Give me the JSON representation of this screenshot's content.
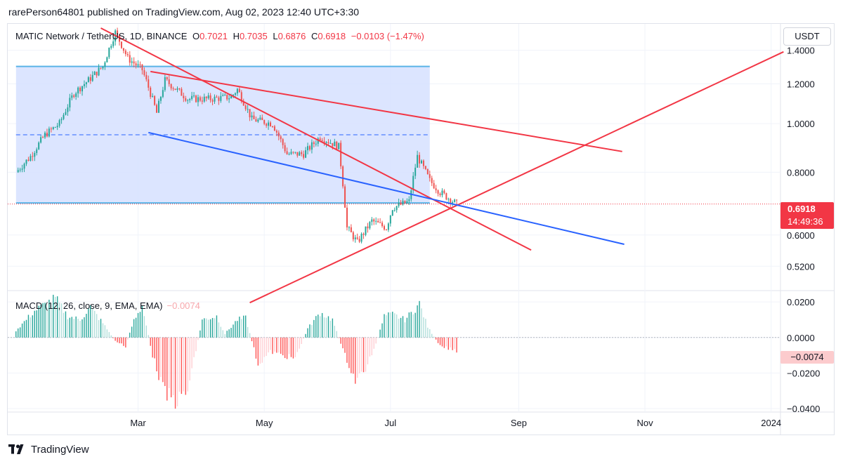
{
  "header": {
    "publisher": "rarePerson64801 published on TradingView.com, Aug 02, 2023 12:40 UTC+3:30"
  },
  "legend": {
    "symbol": "MATIC Network / TetherUS, 1D, BINANCE",
    "open_label": "O",
    "open": "0.7021",
    "high_label": "H",
    "high": "0.7035",
    "low_label": "L",
    "low": "0.6876",
    "close_label": "C",
    "close": "0.6918",
    "change": "−0.0103 (−1.47%)"
  },
  "currency_button": "USDT",
  "price_tag": {
    "price": "0.6918",
    "countdown": "14:49:36"
  },
  "macd": {
    "legend": "MACD (12, 26, close, 9, EMA, EMA)",
    "value": "−0.0074",
    "tag": "−0.0074"
  },
  "footer": {
    "brand": "TradingView"
  },
  "colors": {
    "up": "#26a69a",
    "down": "#ef5350",
    "trendline_red": "#f23645",
    "trendline_blue": "#2962ff",
    "range_fill": "#d6e0ff",
    "range_border": "#5ab4e6",
    "hist_pos_strong": "#26a69a",
    "hist_pos_weak": "#b2dfdb",
    "hist_neg_strong": "#ff5252",
    "hist_neg_weak": "#ffcdd2"
  },
  "chart_data": [
    {
      "type": "candlestick",
      "title": "MATIC Network / TetherUS, 1D, BINANCE",
      "x_ticks": [
        "Mar",
        "May",
        "Jul",
        "Sep",
        "Nov",
        "2024"
      ],
      "y_ticks": [
        "1.4000",
        "1.2000",
        "1.0000",
        "0.8000",
        "0.6000",
        "0.5200"
      ],
      "y_tick_values": [
        1.4,
        1.2,
        1.0,
        0.8,
        0.6,
        0.52
      ],
      "y_scale": "log",
      "ylim": [
        0.465,
        1.58
      ],
      "last_price": 0.6918,
      "close_path": [
        [
          "2023-01-01",
          0.8
        ],
        [
          "2023-01-08",
          0.86
        ],
        [
          "2023-01-15",
          0.95
        ],
        [
          "2023-01-22",
          1.0
        ],
        [
          "2023-01-29",
          1.15
        ],
        [
          "2023-02-05",
          1.22
        ],
        [
          "2023-02-12",
          1.3
        ],
        [
          "2023-02-18",
          1.52
        ],
        [
          "2023-02-24",
          1.35
        ],
        [
          "2023-03-03",
          1.28
        ],
        [
          "2023-03-10",
          1.05
        ],
        [
          "2023-03-14",
          1.22
        ],
        [
          "2023-03-25",
          1.12
        ],
        [
          "2023-04-05",
          1.12
        ],
        [
          "2023-04-15",
          1.13
        ],
        [
          "2023-04-18",
          1.17
        ],
        [
          "2023-04-25",
          1.02
        ],
        [
          "2023-05-05",
          1.0
        ],
        [
          "2023-05-12",
          0.87
        ],
        [
          "2023-05-20",
          0.87
        ],
        [
          "2023-05-28",
          0.94
        ],
        [
          "2023-06-06",
          0.9
        ],
        [
          "2023-06-10",
          0.62
        ],
        [
          "2023-06-15",
          0.58
        ],
        [
          "2023-06-22",
          0.64
        ],
        [
          "2023-06-29",
          0.62
        ],
        [
          "2023-07-02",
          0.68
        ],
        [
          "2023-07-10",
          0.7
        ],
        [
          "2023-07-14",
          0.86
        ],
        [
          "2023-07-20",
          0.77
        ],
        [
          "2023-07-25",
          0.73
        ],
        [
          "2023-08-02",
          0.6918
        ]
      ],
      "overlays": {
        "range_box": {
          "from": "2023-01-01",
          "to": "2023-07-20",
          "top": 1.3,
          "bottom": 0.695,
          "mid": 0.95
        },
        "trendlines_red": [
          [
            [
              "2023-02-11",
              1.55
            ],
            [
              "2023-09-07",
              0.56
            ]
          ],
          [
            [
              "2023-03-07",
              1.27
            ],
            [
              "2023-10-21",
              0.88
            ]
          ],
          [
            [
              "2023-04-24",
              0.44
            ],
            [
              "2024-01-07",
              1.39
            ]
          ]
        ],
        "trendline_blue": [
          [
            "2023-03-06",
            0.96
          ],
          [
            "2023-10-22",
            0.575
          ]
        ]
      }
    },
    {
      "type": "bar",
      "title": "MACD (12, 26, close, 9, EMA, EMA)",
      "y_ticks": [
        "0.0200",
        "0.0000",
        "−0.0200",
        "−0.0400"
      ],
      "y_tick_values": [
        0.02,
        0.0,
        -0.02,
        -0.04
      ],
      "ylim": [
        -0.042,
        0.026
      ],
      "last_value": -0.0074,
      "histogram_path": [
        [
          "2023-01-01",
          0.004
        ],
        [
          "2023-01-10",
          0.015
        ],
        [
          "2023-01-20",
          0.022
        ],
        [
          "2023-01-26",
          0.012
        ],
        [
          "2023-02-01",
          0.01
        ],
        [
          "2023-02-06",
          0.017
        ],
        [
          "2023-02-12",
          0.008
        ],
        [
          "2023-02-18",
          -0.002
        ],
        [
          "2023-02-23",
          -0.005
        ],
        [
          "2023-02-27",
          0.01
        ],
        [
          "2023-03-03",
          0.018
        ],
        [
          "2023-03-08",
          -0.01
        ],
        [
          "2023-03-14",
          -0.032
        ],
        [
          "2023-03-20",
          -0.036
        ],
        [
          "2023-03-25",
          -0.03
        ],
        [
          "2023-04-01",
          0.01
        ],
        [
          "2023-04-08",
          0.012
        ],
        [
          "2023-04-12",
          0.002
        ],
        [
          "2023-04-18",
          0.01
        ],
        [
          "2023-04-22",
          0.011
        ],
        [
          "2023-04-28",
          -0.015
        ],
        [
          "2023-05-04",
          -0.008
        ],
        [
          "2023-05-10",
          -0.01
        ],
        [
          "2023-05-16",
          -0.012
        ],
        [
          "2023-05-22",
          0.005
        ],
        [
          "2023-05-28",
          0.014
        ],
        [
          "2023-06-03",
          0.01
        ],
        [
          "2023-06-08",
          -0.007
        ],
        [
          "2023-06-14",
          -0.024
        ],
        [
          "2023-06-18",
          -0.02
        ],
        [
          "2023-06-24",
          -0.004
        ],
        [
          "2023-06-28",
          0.012
        ],
        [
          "2023-07-02",
          0.013
        ],
        [
          "2023-07-08",
          0.01
        ],
        [
          "2023-07-12",
          0.015
        ],
        [
          "2023-07-15",
          0.019
        ],
        [
          "2023-07-19",
          0.006
        ],
        [
          "2023-07-25",
          -0.005
        ],
        [
          "2023-08-02",
          -0.0074
        ]
      ]
    }
  ]
}
